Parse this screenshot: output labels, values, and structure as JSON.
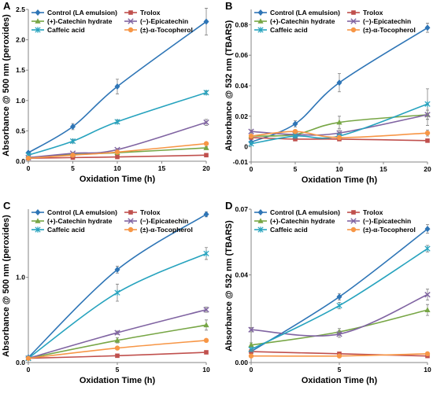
{
  "chart_data": [
    {
      "panel": "A",
      "type": "line",
      "xlabel": "Oxidation Time (h)",
      "ylabel": "Absorbance @ 500 nm (peroxides)",
      "xlim": [
        0,
        20
      ],
      "ylim": [
        0,
        2.5
      ],
      "xticks": [
        0,
        5,
        10,
        15,
        20
      ],
      "yticks": [
        0.0,
        0.5,
        1.0,
        1.5,
        2.0,
        2.5
      ],
      "yticklabels": [
        "0.0",
        "0.5",
        "1.0",
        "1.5",
        "2.0",
        "2.5"
      ],
      "legend_position": "top-left",
      "series": [
        {
          "name": "Control (LA emulsion)",
          "color": "#2e75b6",
          "marker": "diamond",
          "x": [
            0,
            5,
            10,
            20
          ],
          "y": [
            0.14,
            0.57,
            1.23,
            2.3
          ],
          "err": [
            0.02,
            0.05,
            0.12,
            0.22
          ]
        },
        {
          "name": "Trolox",
          "color": "#c0504d",
          "marker": "square",
          "x": [
            0,
            5,
            10,
            20
          ],
          "y": [
            0.05,
            0.06,
            0.07,
            0.1
          ],
          "err": [
            0.01,
            0.01,
            0.01,
            0.01
          ]
        },
        {
          "name": "(+)-Catechin hydrate",
          "color": "#77a645",
          "marker": "triangle",
          "x": [
            0,
            5,
            10,
            20
          ],
          "y": [
            0.06,
            0.11,
            0.14,
            0.22
          ],
          "err": [
            0.01,
            0.01,
            0.02,
            0.02
          ]
        },
        {
          "name": "(−)-Epicatechin",
          "color": "#8064a2",
          "marker": "cross",
          "x": [
            0,
            5,
            10,
            20
          ],
          "y": [
            0.06,
            0.13,
            0.19,
            0.64
          ],
          "err": [
            0.01,
            0.01,
            0.02,
            0.05
          ]
        },
        {
          "name": "Caffeic acid",
          "color": "#27a3be",
          "marker": "star",
          "x": [
            0,
            5,
            10,
            20
          ],
          "y": [
            0.1,
            0.33,
            0.65,
            1.13
          ],
          "err": [
            0.01,
            0.03,
            0.03,
            0.03
          ]
        },
        {
          "name": "(±)-α-Tocopherol",
          "color": "#f79646",
          "marker": "circle",
          "x": [
            0,
            5,
            10,
            20
          ],
          "y": [
            0.05,
            0.1,
            0.15,
            0.29
          ],
          "err": [
            0.01,
            0.01,
            0.01,
            0.02
          ]
        }
      ]
    },
    {
      "panel": "B",
      "type": "line",
      "xlabel": "Oxidation Time (h)",
      "ylabel": "Absorbance @ 532 nm (TBARS)",
      "xlim": [
        0,
        20
      ],
      "ylim": [
        -0.01,
        0.09
      ],
      "xticks": [
        0,
        5,
        10,
        15,
        20
      ],
      "yticks": [
        -0.01,
        0.0,
        0.02,
        0.04,
        0.06,
        0.08
      ],
      "yticklabels": [
        "-0.01",
        "0",
        "0.02",
        "0.04",
        "0.06",
        "0.08"
      ],
      "legend_position": "top-left",
      "series": [
        {
          "name": "Control (LA emulsion)",
          "color": "#2e75b6",
          "marker": "diamond",
          "x": [
            0,
            5,
            10,
            20
          ],
          "y": [
            0.003,
            0.015,
            0.042,
            0.078
          ],
          "err": [
            0.001,
            0.002,
            0.006,
            0.003
          ]
        },
        {
          "name": "Trolox",
          "color": "#c0504d",
          "marker": "square",
          "x": [
            0,
            5,
            10,
            20
          ],
          "y": [
            0.006,
            0.005,
            0.005,
            0.004
          ],
          "err": [
            0.001,
            0.001,
            0.001,
            0.001
          ]
        },
        {
          "name": "(+)-Catechin hydrate",
          "color": "#77a645",
          "marker": "triangle",
          "x": [
            0,
            5,
            10,
            20
          ],
          "y": [
            0.007,
            0.008,
            0.016,
            0.021
          ],
          "err": [
            0.001,
            0.002,
            0.004,
            0.007
          ]
        },
        {
          "name": "(−)-Epicatechin",
          "color": "#8064a2",
          "marker": "cross",
          "x": [
            0,
            5,
            10,
            20
          ],
          "y": [
            0.01,
            0.008,
            0.009,
            0.021
          ],
          "err": [
            0.001,
            0.001,
            0.002,
            0.003
          ]
        },
        {
          "name": "Caffeic acid",
          "color": "#27a3be",
          "marker": "star",
          "x": [
            0,
            5,
            10,
            20
          ],
          "y": [
            0.002,
            0.007,
            0.007,
            0.028
          ],
          "err": [
            0.001,
            0.001,
            0.002,
            0.01
          ]
        },
        {
          "name": "(±)-α-Tocopherol",
          "color": "#f79646",
          "marker": "circle",
          "x": [
            0,
            5,
            10,
            20
          ],
          "y": [
            0.007,
            0.01,
            0.006,
            0.009
          ],
          "err": [
            0.001,
            0.001,
            0.001,
            0.002
          ]
        }
      ]
    },
    {
      "panel": "C",
      "type": "line",
      "xlabel": "Oxidation Time (h)",
      "ylabel": "Absorbance @ 500 nm (peroxides)",
      "xlim": [
        0,
        10
      ],
      "ylim": [
        0,
        1.8
      ],
      "xticks": [
        0,
        5,
        10
      ],
      "yticks": [
        0.0,
        1.0
      ],
      "yticklabels": [
        "0.0",
        "1.0"
      ],
      "legend_position": "top-left",
      "series": [
        {
          "name": "Control (LA emulsion)",
          "color": "#2e75b6",
          "marker": "diamond",
          "x": [
            0,
            5,
            10
          ],
          "y": [
            0.06,
            1.09,
            1.74
          ],
          "err": [
            0.01,
            0.04,
            0.03
          ]
        },
        {
          "name": "Trolox",
          "color": "#c0504d",
          "marker": "square",
          "x": [
            0,
            5,
            10
          ],
          "y": [
            0.05,
            0.08,
            0.12
          ],
          "err": [
            0.01,
            0.01,
            0.01
          ]
        },
        {
          "name": "(+)-Catechin hydrate",
          "color": "#77a645",
          "marker": "triangle",
          "x": [
            0,
            5,
            10
          ],
          "y": [
            0.05,
            0.26,
            0.44
          ],
          "err": [
            0.01,
            0.03,
            0.06
          ]
        },
        {
          "name": "(−)-Epicatechin",
          "color": "#8064a2",
          "marker": "cross",
          "x": [
            0,
            5,
            10
          ],
          "y": [
            0.05,
            0.35,
            0.62
          ],
          "err": [
            0.01,
            0.02,
            0.03
          ]
        },
        {
          "name": "Caffeic acid",
          "color": "#27a3be",
          "marker": "star",
          "x": [
            0,
            5,
            10
          ],
          "y": [
            0.05,
            0.82,
            1.28
          ],
          "err": [
            0.01,
            0.1,
            0.07
          ]
        },
        {
          "name": "(±)-α-Tocopherol",
          "color": "#f79646",
          "marker": "circle",
          "x": [
            0,
            5,
            10
          ],
          "y": [
            0.05,
            0.17,
            0.26
          ],
          "err": [
            0.01,
            0.01,
            0.01
          ]
        }
      ]
    },
    {
      "panel": "D",
      "type": "line",
      "xlabel": "Oxidation Time (h)",
      "ylabel": "Absorbance @ 532 nm (TBARS)",
      "xlim": [
        0,
        10
      ],
      "ylim": [
        0,
        0.07
      ],
      "xticks": [
        0,
        5,
        10
      ],
      "yticks": [
        0.0,
        0.04,
        0.07
      ],
      "yticklabels": [
        "0.00",
        "0.04",
        "0.07"
      ],
      "legend_position": "top-left",
      "series": [
        {
          "name": "Control (LA emulsion)",
          "color": "#2e75b6",
          "marker": "diamond",
          "x": [
            0,
            5,
            10
          ],
          "y": [
            0.005,
            0.03,
            0.061
          ],
          "err": [
            0.001,
            0.0015,
            0.002
          ]
        },
        {
          "name": "Trolox",
          "color": "#c0504d",
          "marker": "square",
          "x": [
            0,
            5,
            10
          ],
          "y": [
            0.005,
            0.004,
            0.003
          ],
          "err": [
            0.0005,
            0.0005,
            0.0005
          ]
        },
        {
          "name": "(+)-Catechin hydrate",
          "color": "#77a645",
          "marker": "triangle",
          "x": [
            0,
            5,
            10
          ],
          "y": [
            0.008,
            0.014,
            0.024
          ],
          "err": [
            0.001,
            0.0015,
            0.0025
          ]
        },
        {
          "name": "(−)-Epicatechin",
          "color": "#8064a2",
          "marker": "cross",
          "x": [
            0,
            5,
            10
          ],
          "y": [
            0.015,
            0.013,
            0.031
          ],
          "err": [
            0.001,
            0.0015,
            0.0025
          ]
        },
        {
          "name": "Caffeic acid",
          "color": "#27a3be",
          "marker": "star",
          "x": [
            0,
            5,
            10
          ],
          "y": [
            0.006,
            0.026,
            0.052
          ],
          "err": [
            0.001,
            0.0015,
            0.0015
          ]
        },
        {
          "name": "(±)-α-Tocopherol",
          "color": "#f79646",
          "marker": "circle",
          "x": [
            0,
            5,
            10
          ],
          "y": [
            0.003,
            0.003,
            0.004
          ],
          "err": [
            0.0005,
            0.0005,
            0.0005
          ]
        }
      ]
    }
  ]
}
